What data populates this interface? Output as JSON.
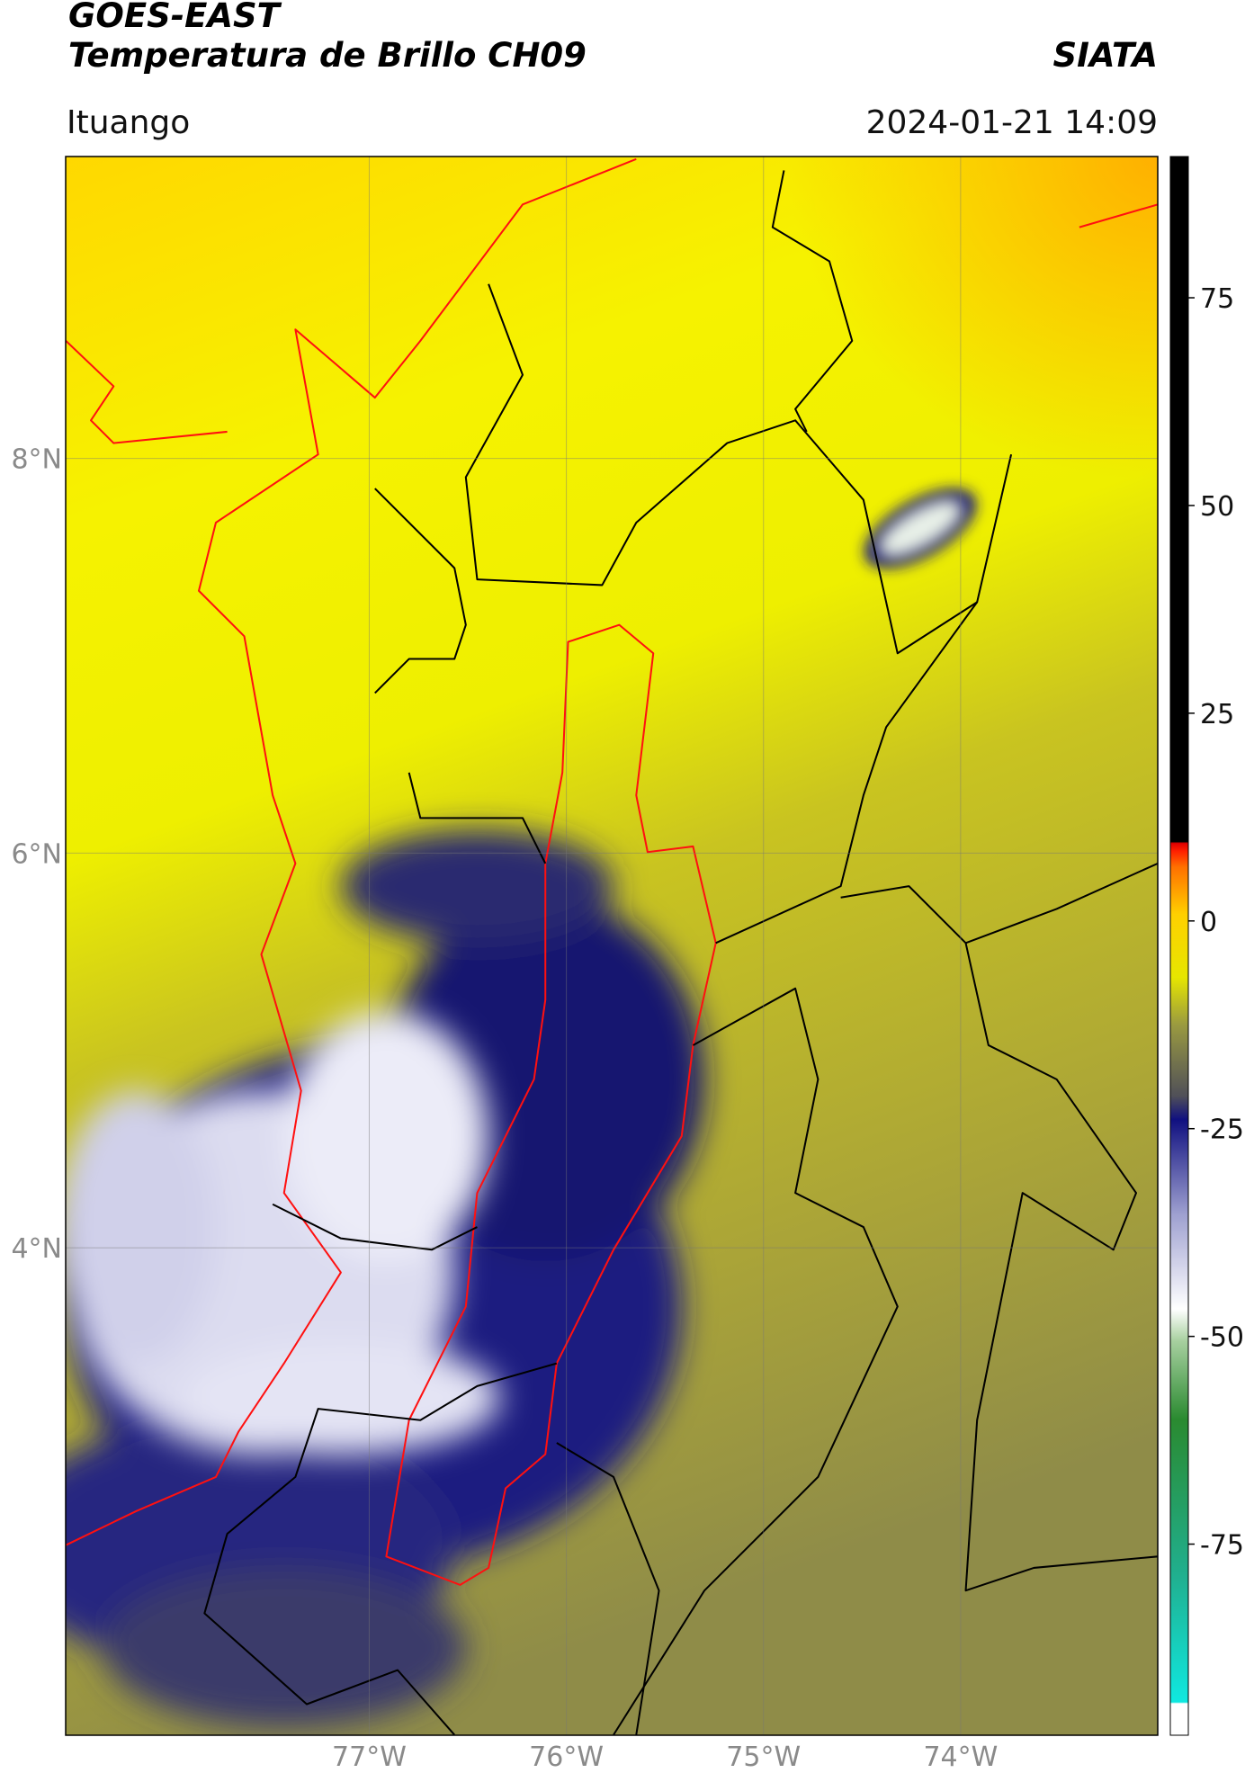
{
  "header": {
    "satellite": "GOES-EAST",
    "product": "Temperatura de Brillo CH09",
    "region": "Ituango",
    "source": "SIATA",
    "datetime": "2024-01-21 14:09"
  },
  "map": {
    "xlim": [
      -78.54,
      -73.0
    ],
    "ylim": [
      1.53,
      9.53
    ],
    "lon_ticks": [
      {
        "value": -77,
        "label": "77°W"
      },
      {
        "value": -76,
        "label": "76°W"
      },
      {
        "value": -75,
        "label": "75°W"
      },
      {
        "value": -74,
        "label": "74°W"
      }
    ],
    "lat_ticks": [
      {
        "value": 8,
        "label": "8°N"
      },
      {
        "value": 6,
        "label": "6°N"
      },
      {
        "value": 4,
        "label": "4°N"
      }
    ]
  },
  "colorbar": {
    "clim": [
      -98,
      92
    ],
    "ticks": [
      75,
      50,
      25,
      0,
      -25,
      -50,
      -75
    ]
  }
}
